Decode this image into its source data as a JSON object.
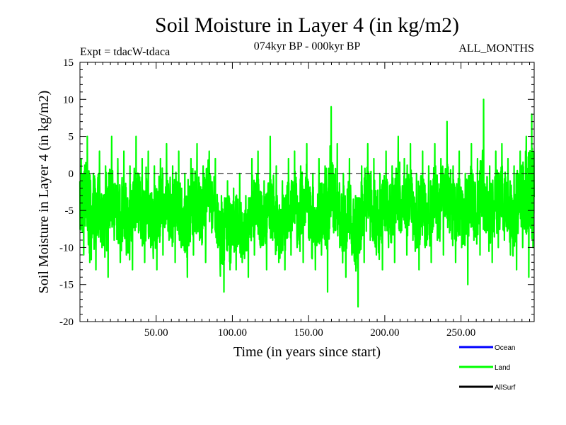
{
  "chart_data": {
    "type": "line",
    "title": "Soil Moisture in Layer 4 (in kg/m2)",
    "subtitle_left": "Expt = tdacW-tdaca",
    "subtitle_center": "074kyr BP - 000kyr BP",
    "subtitle_right": "ALL_MONTHS",
    "xlabel": "Time (in years since start)",
    "ylabel": "Soil Moisture in Layer 4 (in kg/m2)",
    "xlim": [
      0,
      298
    ],
    "ylim": [
      -20,
      15
    ],
    "x_ticks": [
      50,
      100,
      150,
      200,
      250
    ],
    "x_tick_labels": [
      "50.00",
      "100.00",
      "150.00",
      "200.00",
      "250.00"
    ],
    "y_ticks": [
      -20,
      -15,
      -10,
      -5,
      0,
      5,
      10,
      15
    ],
    "y_tick_labels": [
      "-20",
      "-15",
      "-10",
      "-5",
      "0",
      "5",
      "10",
      "15"
    ],
    "reference_line": 0,
    "grid": false,
    "legend_position": "bottom-right",
    "series": [
      {
        "name": "Land",
        "color": "#00ff00",
        "x": [
          0,
          4,
          8,
          12,
          16,
          20,
          24,
          28,
          32,
          36,
          40,
          44,
          48,
          52,
          56,
          60,
          64,
          68,
          72,
          76,
          80,
          84,
          88,
          92,
          96,
          100,
          104,
          108,
          112,
          116,
          120,
          124,
          128,
          132,
          136,
          140,
          144,
          148,
          152,
          156,
          160,
          164,
          168,
          172,
          176,
          180,
          184,
          188,
          192,
          196,
          200,
          204,
          208,
          212,
          216,
          220,
          224,
          228,
          232,
          236,
          240,
          244,
          248,
          252,
          256,
          260,
          264,
          268,
          272,
          276,
          280,
          284,
          288,
          292,
          296,
          298
        ],
        "values": [
          -5,
          -3,
          -6,
          -4,
          -7,
          -2,
          -6,
          -5,
          -8,
          -3,
          -6,
          -4,
          -7,
          -5,
          -3,
          -6,
          -4,
          -8,
          -5,
          -3,
          -6,
          -2,
          -4,
          -9,
          -7,
          -8,
          -6,
          -9,
          -5,
          -4,
          -7,
          -3,
          -6,
          -8,
          -5,
          -4,
          -6,
          -3,
          -7,
          -5,
          -6,
          -2,
          -4,
          -7,
          -5,
          -9,
          -6,
          -3,
          -5,
          -7,
          -4,
          -6,
          -2,
          -5,
          -3,
          -7,
          -4,
          -6,
          -3,
          -5,
          -2,
          -6,
          -4,
          -7,
          -3,
          -5,
          -2,
          -6,
          -4,
          -3,
          -5,
          -6,
          -4,
          -3,
          -2,
          -3
        ],
        "max_values": [
          2,
          5,
          0,
          3,
          1,
          5,
          2,
          3,
          1,
          5,
          2,
          3,
          1,
          2,
          4,
          1,
          3,
          0,
          2,
          4,
          1,
          3,
          2,
          -3,
          -1,
          -2,
          0,
          -3,
          2,
          3,
          -1,
          5,
          1,
          -1,
          2,
          3,
          1,
          4,
          0,
          2,
          1,
          9,
          4,
          0,
          2,
          -3,
          1,
          4,
          2,
          0,
          3,
          1,
          5,
          2,
          4,
          0,
          3,
          1,
          4,
          2,
          7,
          1,
          3,
          0,
          4,
          2,
          10,
          1,
          3,
          4,
          2,
          1,
          3,
          5,
          8,
          6
        ],
        "min_values": [
          -11,
          -12,
          -13,
          -10,
          -14,
          -9,
          -12,
          -11,
          -13,
          -8,
          -12,
          -10,
          -13,
          -11,
          -9,
          -12,
          -10,
          -14,
          -11,
          -9,
          -12,
          -8,
          -10,
          -16,
          -13,
          -13,
          -12,
          -14,
          -11,
          -10,
          -13,
          -9,
          -12,
          -13,
          -11,
          -10,
          -12,
          -9,
          -13,
          -11,
          -16,
          -8,
          -10,
          -14,
          -11,
          -18,
          -12,
          -9,
          -11,
          -13,
          -10,
          -12,
          -8,
          -11,
          -9,
          -13,
          -10,
          -12,
          -9,
          -11,
          -8,
          -12,
          -10,
          -15,
          -9,
          -11,
          -8,
          -12,
          -10,
          -9,
          -11,
          -13,
          -10,
          -14,
          -10,
          -9
        ]
      },
      {
        "name": "Ocean",
        "color": "#0000ff",
        "values": []
      },
      {
        "name": "AllSurf",
        "color": "#000000",
        "values": []
      }
    ],
    "legend": [
      {
        "label": "Ocean",
        "color": "#0000ff"
      },
      {
        "label": "Land",
        "color": "#00ff00"
      },
      {
        "label": "AllSurf",
        "color": "#000000"
      }
    ]
  }
}
